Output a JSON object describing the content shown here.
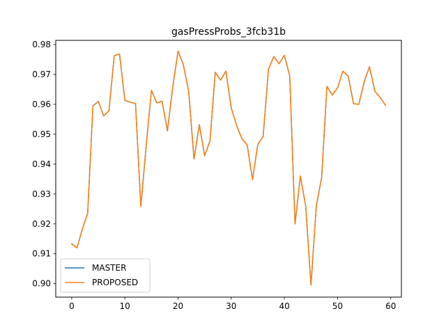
{
  "chart_data": {
    "type": "line",
    "title": "gasPressProbs_3fcb31b",
    "xlabel": "",
    "ylabel": "",
    "xlim": [
      -3,
      62
    ],
    "ylim": [
      0.8955,
      0.9814
    ],
    "xticks": [
      0,
      10,
      20,
      30,
      40,
      50,
      60
    ],
    "yticks": [
      0.9,
      0.91,
      0.92,
      0.93,
      0.94,
      0.95,
      0.96,
      0.97,
      0.98
    ],
    "ytick_labels": [
      "0.90",
      "0.91",
      "0.92",
      "0.93",
      "0.94",
      "0.95",
      "0.96",
      "0.97",
      "0.98"
    ],
    "grid": false,
    "legend": {
      "placement": "lower-left",
      "entries": [
        "MASTER",
        "PROPOSED"
      ]
    },
    "x": [
      0,
      1,
      2,
      3,
      4,
      5,
      6,
      7,
      8,
      9,
      10,
      11,
      12,
      13,
      14,
      15,
      16,
      17,
      18,
      19,
      20,
      21,
      22,
      23,
      24,
      25,
      26,
      27,
      28,
      29,
      30,
      31,
      32,
      33,
      34,
      35,
      36,
      37,
      38,
      39,
      40,
      41,
      42,
      43,
      44,
      45,
      46,
      47,
      48,
      49,
      50,
      51,
      52,
      53,
      54,
      55,
      56,
      57,
      58,
      59
    ],
    "series": [
      {
        "name": "MASTER",
        "color": "#1f77b4",
        "values": [
          0.9133,
          0.912,
          0.9183,
          0.9235,
          0.9595,
          0.961,
          0.9561,
          0.9578,
          0.9763,
          0.9768,
          0.9613,
          0.9607,
          0.9603,
          0.9258,
          0.946,
          0.9647,
          0.9605,
          0.961,
          0.9511,
          0.9658,
          0.9778,
          0.9732,
          0.9643,
          0.9417,
          0.9532,
          0.9428,
          0.9477,
          0.9707,
          0.9681,
          0.9711,
          0.9588,
          0.953,
          0.9485,
          0.9464,
          0.9348,
          0.9466,
          0.9493,
          0.9717,
          0.976,
          0.9736,
          0.9764,
          0.9695,
          0.92,
          0.936,
          0.926,
          0.8995,
          0.926,
          0.9355,
          0.966,
          0.9631,
          0.9655,
          0.9711,
          0.9694,
          0.9602,
          0.96,
          0.9675,
          0.9726,
          0.9644,
          0.9623,
          0.9597
        ]
      },
      {
        "name": "PROPOSED",
        "color": "#ff7f0e",
        "values": [
          0.9133,
          0.912,
          0.9183,
          0.9235,
          0.9595,
          0.961,
          0.9561,
          0.9578,
          0.9763,
          0.9768,
          0.9613,
          0.9607,
          0.9603,
          0.9258,
          0.946,
          0.9647,
          0.9605,
          0.961,
          0.9511,
          0.9658,
          0.9778,
          0.9732,
          0.9643,
          0.9417,
          0.9532,
          0.9428,
          0.9477,
          0.9707,
          0.9681,
          0.9711,
          0.9588,
          0.953,
          0.9485,
          0.9464,
          0.9348,
          0.9466,
          0.9493,
          0.9717,
          0.976,
          0.9736,
          0.9764,
          0.9695,
          0.92,
          0.936,
          0.926,
          0.8995,
          0.926,
          0.9355,
          0.966,
          0.9631,
          0.9655,
          0.9711,
          0.9694,
          0.9602,
          0.96,
          0.9675,
          0.9726,
          0.9644,
          0.9623,
          0.9597
        ]
      }
    ]
  }
}
